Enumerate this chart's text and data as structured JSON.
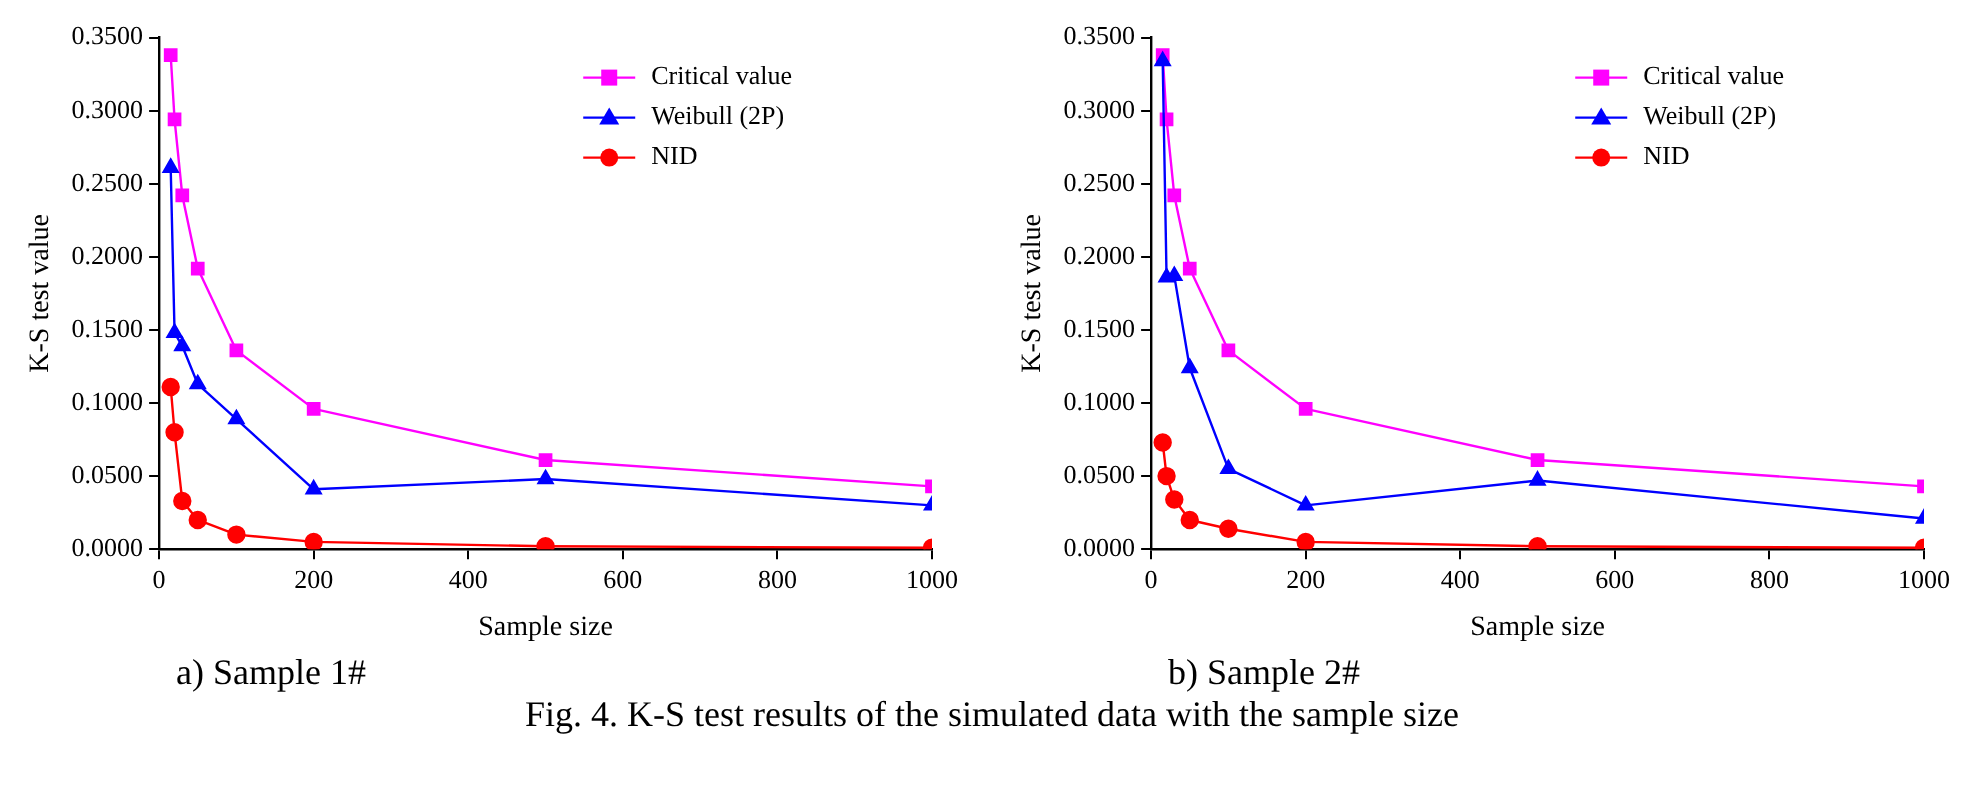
{
  "chart_data": [
    {
      "type": "line",
      "xlabel": "Sample size",
      "ylabel": "K-S test value",
      "x": [
        15,
        20,
        30,
        50,
        100,
        200,
        500,
        1000
      ],
      "series": [
        {
          "name": "Critical value",
          "color": "#ff00ff",
          "marker": "square",
          "values": [
            0.338,
            0.294,
            0.242,
            0.192,
            0.136,
            0.096,
            0.061,
            0.043
          ]
        },
        {
          "name": "Weibull (2P)",
          "color": "#0000ff",
          "marker": "triangle",
          "values": [
            0.261,
            0.148,
            0.139,
            0.113,
            0.089,
            0.041,
            0.048,
            0.03
          ]
        },
        {
          "name": "NID",
          "color": "#ff0000",
          "marker": "circle",
          "values": [
            0.111,
            0.08,
            0.033,
            0.02,
            0.01,
            0.005,
            0.002,
            0.001
          ]
        }
      ],
      "xlim": [
        0,
        1000
      ],
      "xticks": [
        0,
        200,
        400,
        600,
        800,
        1000
      ],
      "ylim": [
        0,
        0.35
      ],
      "yticks": [
        {
          "value": 0,
          "label": "0.0000"
        },
        {
          "value": 0.05,
          "label": "0.0500"
        },
        {
          "value": 0.1,
          "label": "0.1000"
        },
        {
          "value": 0.15,
          "label": "0.1500"
        },
        {
          "value": 0.2,
          "label": "0.2000"
        },
        {
          "value": 0.25,
          "label": "0.2500"
        },
        {
          "value": 0.3,
          "label": "0.3000"
        },
        {
          "value": 0.35,
          "label": "0.3500"
        }
      ],
      "grid": false,
      "legend": "top right",
      "line_style": "solid",
      "annotations": [
        "a) Sample 1#"
      ]
    },
    {
      "type": "line",
      "xlabel": "Sample size",
      "ylabel": "K-S test value",
      "x": [
        15,
        20,
        30,
        50,
        100,
        200,
        500,
        1000
      ],
      "series": [
        {
          "name": "Critical value",
          "color": "#ff00ff",
          "marker": "square",
          "values": [
            0.338,
            0.294,
            0.242,
            0.192,
            0.136,
            0.096,
            0.061,
            0.043
          ]
        },
        {
          "name": "Weibull (2P)",
          "color": "#0000ff",
          "marker": "triangle",
          "values": [
            0.334,
            0.186,
            0.187,
            0.124,
            0.055,
            0.03,
            0.047,
            0.021
          ]
        },
        {
          "name": "NID",
          "color": "#ff0000",
          "marker": "circle",
          "values": [
            0.073,
            0.05,
            0.034,
            0.02,
            0.014,
            0.005,
            0.002,
            0.001
          ]
        }
      ],
      "xlim": [
        0,
        1000
      ],
      "xticks": [
        0,
        200,
        400,
        600,
        800,
        1000
      ],
      "ylim": [
        0,
        0.35
      ],
      "yticks": [
        {
          "value": 0,
          "label": "0.0000"
        },
        {
          "value": 0.05,
          "label": "0.0500"
        },
        {
          "value": 0.1,
          "label": "0.1000"
        },
        {
          "value": 0.15,
          "label": "0.1500"
        },
        {
          "value": 0.2,
          "label": "0.2000"
        },
        {
          "value": 0.25,
          "label": "0.2500"
        },
        {
          "value": 0.3,
          "label": "0.3000"
        },
        {
          "value": 0.35,
          "label": "0.3500"
        }
      ],
      "grid": false,
      "legend": "top right",
      "line_style": "solid",
      "annotations": [
        "b) Sample 2#",
        "Fig. 4. K-S test results of the simulated data with the sample size"
      ]
    }
  ]
}
